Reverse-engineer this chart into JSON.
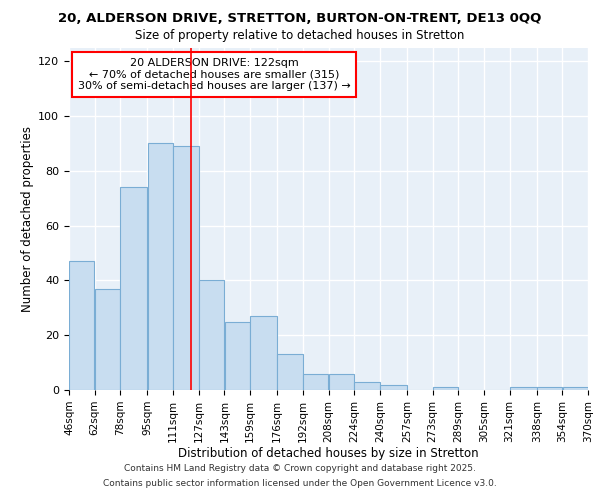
{
  "title1": "20, ALDERSON DRIVE, STRETTON, BURTON-ON-TRENT, DE13 0QQ",
  "title2": "Size of property relative to detached houses in Stretton",
  "xlabel": "Distribution of detached houses by size in Stretton",
  "ylabel": "Number of detached properties",
  "bar_left_edges": [
    46,
    62,
    78,
    95,
    111,
    127,
    143,
    159,
    176,
    192,
    208,
    224,
    240,
    257,
    273,
    289,
    305,
    321,
    338,
    354
  ],
  "bar_widths": [
    16,
    16,
    17,
    16,
    16,
    16,
    16,
    17,
    16,
    16,
    16,
    16,
    17,
    16,
    16,
    16,
    16,
    17,
    16,
    16
  ],
  "bar_heights": [
    47,
    37,
    74,
    90,
    89,
    40,
    25,
    27,
    13,
    6,
    6,
    3,
    2,
    0,
    1,
    0,
    0,
    1,
    1,
    1
  ],
  "bar_color": "#c8ddf0",
  "bar_edge_color": "#7aadd4",
  "tick_labels": [
    "46sqm",
    "62sqm",
    "78sqm",
    "95sqm",
    "111sqm",
    "127sqm",
    "143sqm",
    "159sqm",
    "176sqm",
    "192sqm",
    "208sqm",
    "224sqm",
    "240sqm",
    "257sqm",
    "273sqm",
    "289sqm",
    "305sqm",
    "321sqm",
    "338sqm",
    "354sqm",
    "370sqm"
  ],
  "red_line_x": 122,
  "annotation_title": "20 ALDERSON DRIVE: 122sqm",
  "annotation_line1": "← 70% of detached houses are smaller (315)",
  "annotation_line2": "30% of semi-detached houses are larger (137) →",
  "ylim": [
    0,
    125
  ],
  "yticks": [
    0,
    20,
    40,
    60,
    80,
    100,
    120
  ],
  "footer1": "Contains HM Land Registry data © Crown copyright and database right 2025.",
  "footer2": "Contains public sector information licensed under the Open Government Licence v3.0.",
  "background_color": "#e8f0f8",
  "grid_color": "#ffffff",
  "title1_fontsize": 9.5,
  "title2_fontsize": 8.5,
  "axis_label_fontsize": 8.5,
  "tick_fontsize": 7.5,
  "annot_fontsize": 8,
  "footer_fontsize": 6.5
}
